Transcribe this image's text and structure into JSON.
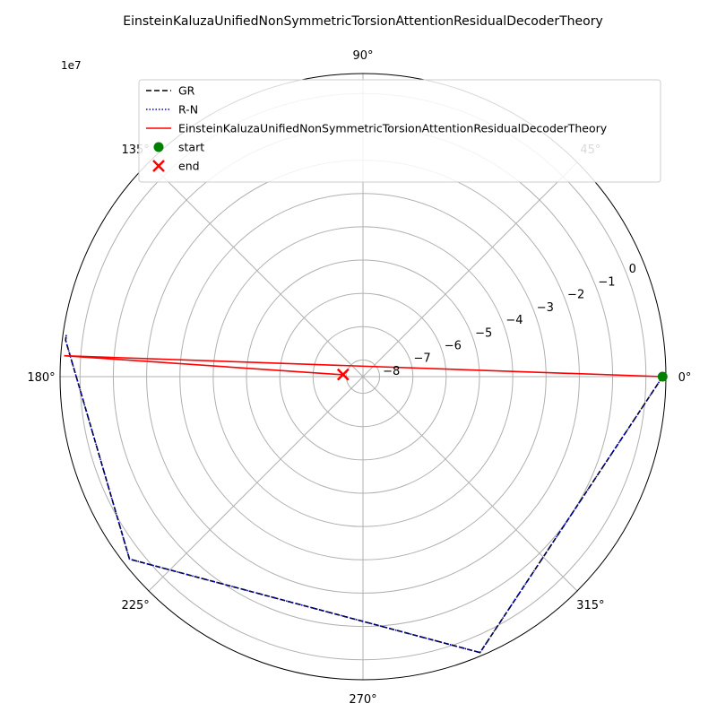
{
  "chart_data": {
    "type": "line",
    "projection": "polar",
    "title": "EinsteinKaluzaUnifiedNonSymmetricTorsionAttentionResidualDecoderTheory",
    "radial_offset_label": "1e7",
    "radial_ticks": [
      -8,
      -7,
      -6,
      -5,
      -4,
      -3,
      -2,
      -1,
      0
    ],
    "radial_tick_labels": [
      "−8",
      "−7",
      "−6",
      "−5",
      "−4",
      "−3",
      "−2",
      "−1",
      "0"
    ],
    "angle_ticks": [
      0,
      45,
      90,
      135,
      180,
      225,
      270,
      315
    ],
    "angle_tick_labels": [
      "0°",
      "45°",
      "90°",
      "135°",
      "180°",
      "225°",
      "270°",
      "315°"
    ],
    "rlim": [
      -8.5,
      0.6
    ],
    "grid": true,
    "legend_position": "top",
    "series": [
      {
        "name": "GR",
        "color": "#000000",
        "style": "dashed",
        "points": [
          [
            0,
            0.5
          ],
          [
            -1,
            0.4
          ],
          [
            -67,
            0.5
          ],
          [
            -142,
            0.4
          ],
          [
            -187,
            0.5
          ],
          [
            -188,
            0.5
          ]
        ]
      },
      {
        "name": "R-N",
        "color": "#0000cc",
        "style": "dotted",
        "points": [
          [
            0,
            0.5
          ],
          [
            -1,
            0.4
          ],
          [
            -67,
            0.5
          ],
          [
            -142,
            0.4
          ],
          [
            -187,
            0.5
          ],
          [
            -188,
            0.5
          ]
        ]
      },
      {
        "name": "EinsteinKaluzaUnifiedNonSymmetricTorsionAttentionResidualDecoderTheory",
        "color": "#ff0000",
        "style": "solid",
        "points": [
          [
            0,
            0.5
          ],
          [
            176,
            0.5
          ],
          [
            175,
            -7.8
          ],
          [
            174,
            -7.9
          ]
        ]
      }
    ],
    "markers": [
      {
        "name": "start",
        "color": "#008000",
        "shape": "circle",
        "point": [
          0,
          0.5
        ]
      },
      {
        "name": "end",
        "color": "#ff0000",
        "shape": "x",
        "point": [
          174,
          -7.9
        ]
      }
    ]
  }
}
